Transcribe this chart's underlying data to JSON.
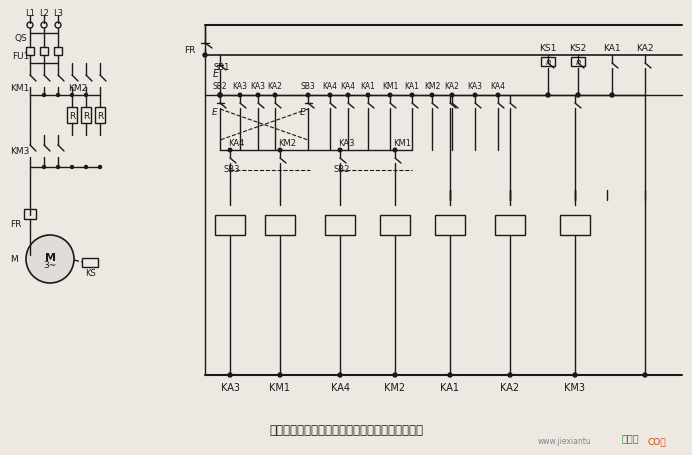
{
  "title": "具有反接制动电阻的可逆运行反接制动的控制线路",
  "watermark": "www.jiexiantu",
  "bg_color": "#ede9e2",
  "line_color": "#1a1a1a",
  "label_color": "#1a1a1a",
  "fig_width": 6.92,
  "fig_height": 4.56,
  "dpi": 100,
  "coil_labels": [
    "KA3",
    "KM1",
    "KA4",
    "KM2",
    "KA1",
    "KA2",
    "KM3"
  ],
  "bottom_labels": [
    "KA3",
    "KM1",
    "KA4",
    "KM2",
    "KA1",
    "KA2",
    "KM3"
  ]
}
